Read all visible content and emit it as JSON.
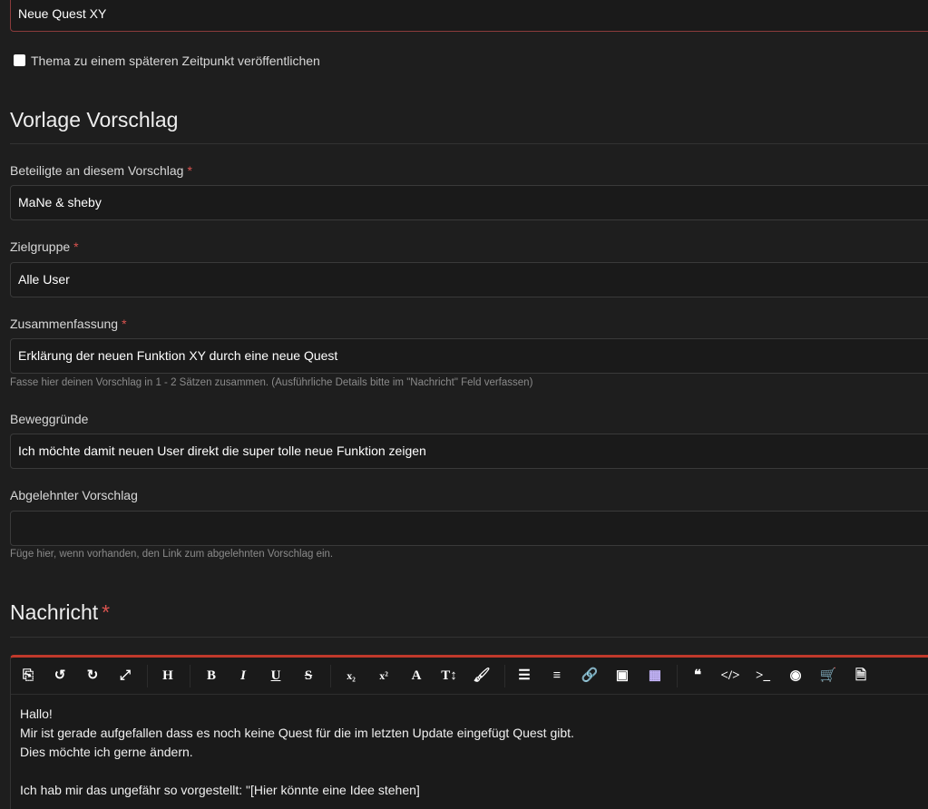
{
  "title_field": {
    "value": "Neue Quest XY"
  },
  "schedule_checkbox": {
    "label": "Thema zu einem späteren Zeitpunkt veröffentlichen",
    "checked": false
  },
  "section_template": {
    "heading": "Vorlage Vorschlag"
  },
  "fields": [
    {
      "label": "Beteiligte an diesem Vorschlag",
      "required": "*",
      "value": "MaNe & sheby",
      "hint": ""
    },
    {
      "label": "Zielgruppe",
      "required": "*",
      "value": "Alle User",
      "hint": ""
    },
    {
      "label": "Zusammenfassung",
      "required": "*",
      "value": "Erklärung der neuen Funktion XY durch eine neue Quest",
      "hint": "Fasse hier deinen Vorschlag in 1 - 2 Sätzen zusammen. (Ausführliche Details bitte im \"Nachricht\" Feld verfassen)"
    },
    {
      "label": "Beweggründe",
      "value": "Ich möchte damit neuen User direkt die super tolle neue Funktion zeigen",
      "hint": ""
    },
    {
      "label": "Abgelehnter Vorschlag",
      "value": "",
      "hint": "Füge hier, wenn vorhanden, den Link zum abgelehnten Vorschlag ein."
    }
  ],
  "section_message": {
    "heading": "Nachricht",
    "required": "*"
  },
  "colors": {
    "accent": "#c0392b",
    "background": "#1e1e1e"
  },
  "toolbar": [
    {
      "icon": "source-icon",
      "glyph": "⎘"
    },
    {
      "icon": "undo-icon",
      "glyph": "↺"
    },
    {
      "icon": "redo-icon",
      "glyph": "↻"
    },
    {
      "icon": "fullscreen-icon",
      "glyph": "⤢"
    },
    {
      "icon": "heading-icon",
      "glyph": "H"
    },
    {
      "icon": "bold-icon",
      "glyph": "B"
    },
    {
      "icon": "italic-icon",
      "glyph": "I"
    },
    {
      "icon": "underline-icon",
      "glyph": "U"
    },
    {
      "icon": "strikethrough-icon",
      "glyph": "S"
    },
    {
      "icon": "subscript-icon",
      "glyph": "x₂"
    },
    {
      "icon": "superscript-icon",
      "glyph": "x²"
    },
    {
      "icon": "font-color-icon",
      "glyph": "A"
    },
    {
      "icon": "font-size-icon",
      "glyph": "T↕"
    },
    {
      "icon": "brush-icon",
      "glyph": "🖌"
    },
    {
      "icon": "list-icon",
      "glyph": "☰"
    },
    {
      "icon": "align-icon",
      "glyph": "≡"
    },
    {
      "icon": "link-icon",
      "glyph": "🔗"
    },
    {
      "icon": "image-icon",
      "glyph": "▣"
    },
    {
      "icon": "table-icon",
      "glyph": "▦"
    },
    {
      "icon": "quote-icon",
      "glyph": "❝"
    },
    {
      "icon": "code-icon",
      "glyph": "</>"
    },
    {
      "icon": "terminal-icon",
      "glyph": ">_"
    },
    {
      "icon": "spoiler-icon",
      "glyph": "◉"
    },
    {
      "icon": "cart-icon",
      "glyph": "🛒"
    },
    {
      "icon": "page-icon",
      "glyph": "🗎"
    }
  ],
  "message_lines": [
    "Hallo!",
    "Mir ist gerade aufgefallen dass es noch keine Quest für die im letzten Update eingefügt Quest gibt.",
    "Dies möchte ich gerne ändern.",
    "",
    "Ich hab mir das ungefähr so vorgestellt: \"[Hier könnte eine Idee stehen]"
  ]
}
